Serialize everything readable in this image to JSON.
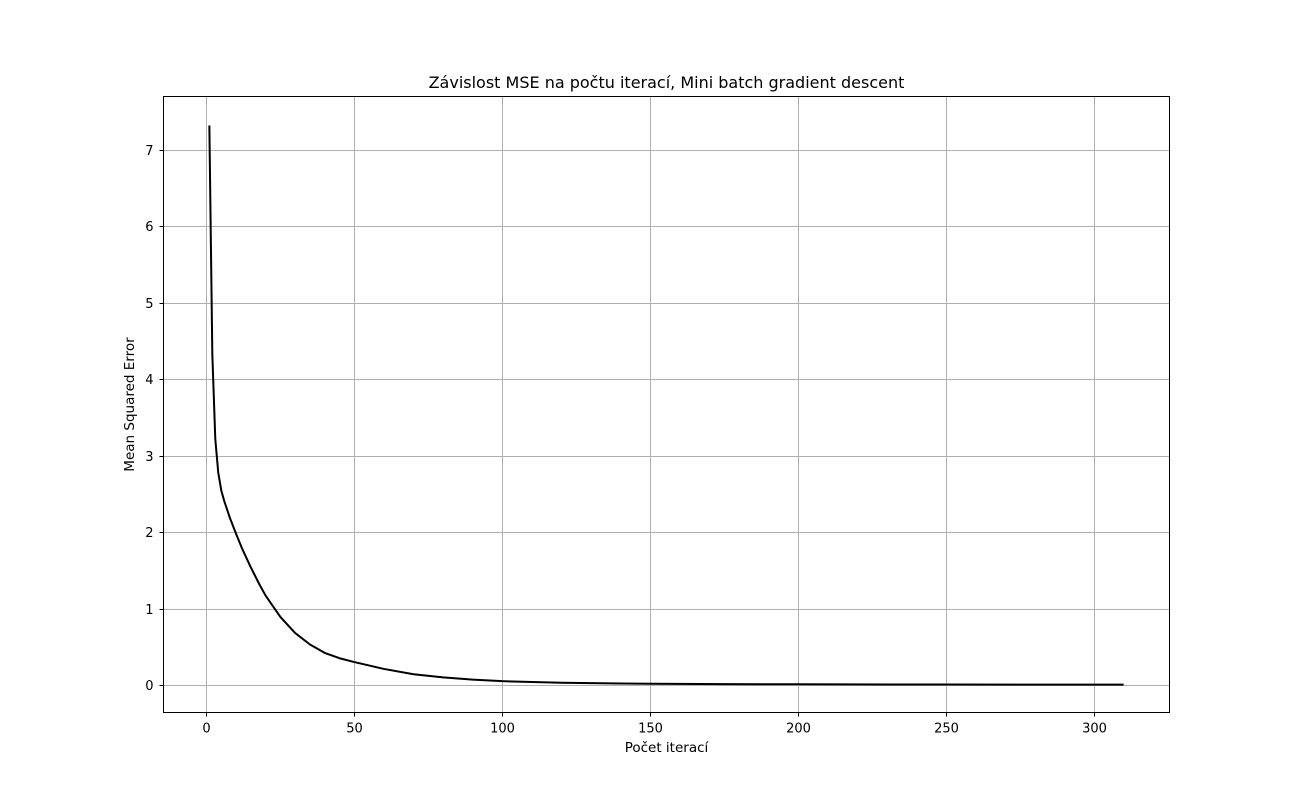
{
  "chart_data": {
    "type": "line",
    "title": "Závislost MSE na počtu iterací, Mini batch gradient descent",
    "xlabel": "Počet iterací",
    "ylabel": "Mean Squared Error",
    "xlim": [
      -14.5,
      325.5
    ],
    "ylim": [
      -0.36,
      7.7
    ],
    "x_ticks": [
      0,
      50,
      100,
      150,
      200,
      250,
      300
    ],
    "y_ticks": [
      0,
      1,
      2,
      3,
      4,
      5,
      6,
      7
    ],
    "grid": true,
    "line_color": "#000000",
    "series": [
      {
        "x": [
          1,
          2,
          3,
          4,
          5,
          6,
          8,
          10,
          12,
          15,
          18,
          20,
          25,
          30,
          35,
          40,
          45,
          50,
          60,
          70,
          80,
          90,
          100,
          120,
          140,
          150,
          175,
          200,
          250,
          300,
          310
        ],
        "y": [
          7.32,
          4.33,
          3.22,
          2.78,
          2.55,
          2.41,
          2.18,
          1.98,
          1.79,
          1.54,
          1.31,
          1.17,
          0.89,
          0.68,
          0.53,
          0.42,
          0.35,
          0.3,
          0.21,
          0.14,
          0.1,
          0.07,
          0.05,
          0.03,
          0.02,
          0.017,
          0.012,
          0.009,
          0.006,
          0.005,
          0.005
        ]
      }
    ]
  }
}
